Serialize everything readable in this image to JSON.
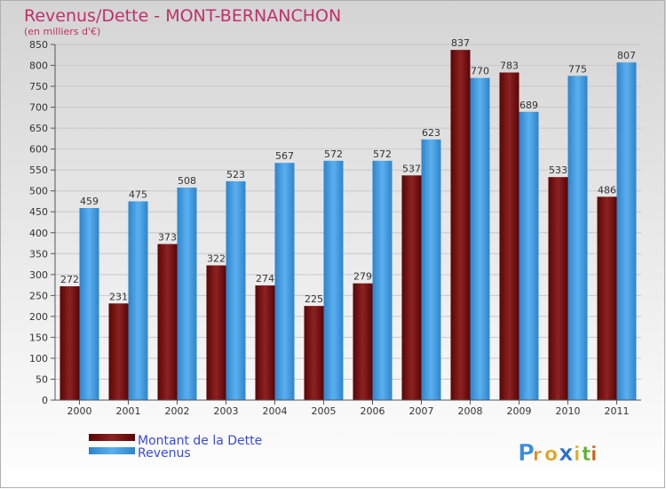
{
  "chart_data": {
    "type": "bar",
    "title": "Revenus/Dette - MONT-BERNANCHON",
    "subtitle": "(en milliers d'€)",
    "categories": [
      "2000",
      "2001",
      "2002",
      "2003",
      "2004",
      "2005",
      "2006",
      "2007",
      "2008",
      "2009",
      "2010",
      "2011"
    ],
    "series": [
      {
        "name": "Montant de la Dette",
        "color": "#7a1010",
        "values": [
          272,
          231,
          373,
          322,
          274,
          225,
          279,
          537,
          837,
          783,
          533,
          486
        ]
      },
      {
        "name": "Revenus",
        "color": "#3a98e0",
        "values": [
          459,
          475,
          508,
          523,
          567,
          572,
          572,
          623,
          770,
          689,
          775,
          807
        ]
      }
    ],
    "ylim": [
      0,
      850
    ],
    "yticks": [
      0,
      50,
      100,
      150,
      200,
      250,
      300,
      350,
      400,
      450,
      500,
      550,
      600,
      650,
      700,
      750,
      800,
      850
    ],
    "grid": true,
    "legend_position": "bottom-left",
    "title_color": "#c0306a",
    "legend_text_color": "#3a4ad8"
  },
  "brand": {
    "letters": [
      "P",
      "r",
      "o",
      "x",
      "i",
      "t",
      "i"
    ],
    "colors": [
      "#3a8fd8",
      "#e08a20",
      "#e0a020",
      "#2a70c8",
      "#d8b020",
      "#58b030",
      "#d06010"
    ]
  }
}
